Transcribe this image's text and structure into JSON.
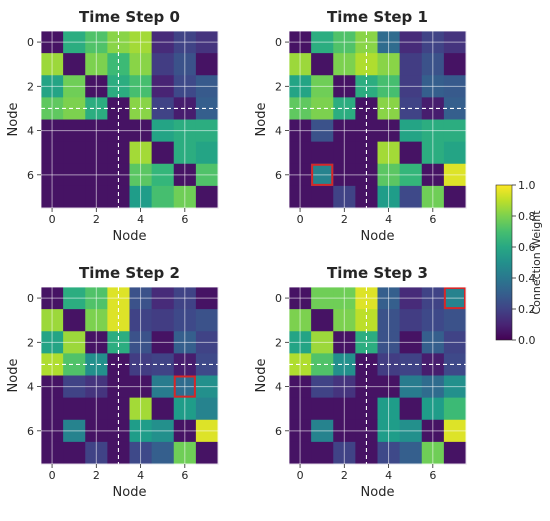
{
  "chart_data": {
    "type": "heatmap",
    "xlabel": "Node",
    "ylabel": "Node",
    "x_ticks": [
      "0",
      "2",
      "4",
      "6"
    ],
    "y_ticks": [
      "0",
      "2",
      "4",
      "6"
    ],
    "colorbar": {
      "label": "Connection Weight",
      "range": [
        0.0,
        1.0
      ],
      "ticks": [
        "0.0",
        "0.2",
        "0.4",
        "0.6",
        "0.8",
        "1.0"
      ],
      "colormap": "viridis"
    },
    "grid": true,
    "divider_index": 4,
    "panels": [
      {
        "title": "Time Step 0",
        "highlight": null,
        "matrix": [
          [
            0.05,
            0.62,
            0.72,
            0.82,
            0.86,
            0.12,
            0.2,
            0.15
          ],
          [
            0.85,
            0.05,
            0.8,
            0.68,
            0.82,
            0.18,
            0.25,
            0.05
          ],
          [
            0.58,
            0.78,
            0.05,
            0.62,
            0.7,
            0.1,
            0.22,
            0.28
          ],
          [
            0.75,
            0.8,
            0.62,
            0.05,
            0.82,
            0.2,
            0.08,
            0.3
          ],
          [
            0.05,
            0.05,
            0.05,
            0.05,
            0.05,
            0.58,
            0.62,
            0.62
          ],
          [
            0.05,
            0.05,
            0.05,
            0.05,
            0.86,
            0.05,
            0.62,
            0.58
          ],
          [
            0.05,
            0.05,
            0.05,
            0.05,
            0.74,
            0.66,
            0.05,
            0.72
          ],
          [
            0.05,
            0.05,
            0.05,
            0.05,
            0.55,
            0.7,
            0.78,
            0.05
          ]
        ]
      },
      {
        "title": "Time Step 1",
        "highlight": [
          6,
          1
        ],
        "matrix": [
          [
            0.05,
            0.62,
            0.72,
            0.82,
            0.35,
            0.12,
            0.2,
            0.15
          ],
          [
            0.85,
            0.05,
            0.8,
            0.88,
            0.82,
            0.18,
            0.25,
            0.05
          ],
          [
            0.58,
            0.78,
            0.05,
            0.62,
            0.7,
            0.18,
            0.3,
            0.28
          ],
          [
            0.75,
            0.8,
            0.62,
            0.05,
            0.82,
            0.2,
            0.08,
            0.3
          ],
          [
            0.05,
            0.25,
            0.05,
            0.05,
            0.05,
            0.58,
            0.62,
            0.62
          ],
          [
            0.05,
            0.05,
            0.05,
            0.05,
            0.86,
            0.05,
            0.62,
            0.58
          ],
          [
            0.05,
            0.45,
            0.05,
            0.05,
            0.74,
            0.66,
            0.05,
            0.95
          ],
          [
            0.05,
            0.05,
            0.2,
            0.05,
            0.55,
            0.22,
            0.78,
            0.05
          ]
        ]
      },
      {
        "title": "Time Step 2",
        "highlight": [
          4,
          6
        ],
        "matrix": [
          [
            0.05,
            0.62,
            0.72,
            0.95,
            0.25,
            0.12,
            0.2,
            0.05
          ],
          [
            0.85,
            0.05,
            0.8,
            0.95,
            0.2,
            0.18,
            0.22,
            0.25
          ],
          [
            0.58,
            0.85,
            0.05,
            0.62,
            0.25,
            0.05,
            0.3,
            0.2
          ],
          [
            0.88,
            0.72,
            0.5,
            0.05,
            0.18,
            0.2,
            0.08,
            0.22
          ],
          [
            0.05,
            0.2,
            0.15,
            0.05,
            0.05,
            0.42,
            0.35,
            0.5
          ],
          [
            0.05,
            0.05,
            0.05,
            0.05,
            0.86,
            0.05,
            0.55,
            0.45
          ],
          [
            0.05,
            0.45,
            0.05,
            0.05,
            0.55,
            0.5,
            0.05,
            0.95
          ],
          [
            0.05,
            0.05,
            0.2,
            0.05,
            0.22,
            0.3,
            0.78,
            0.05
          ]
        ]
      },
      {
        "title": "Time Step 3",
        "highlight": [
          0,
          7
        ],
        "matrix": [
          [
            0.05,
            0.78,
            0.78,
            0.95,
            0.3,
            0.12,
            0.2,
            0.45
          ],
          [
            0.8,
            0.05,
            0.8,
            0.9,
            0.25,
            0.18,
            0.22,
            0.25
          ],
          [
            0.58,
            0.85,
            0.05,
            0.62,
            0.25,
            0.05,
            0.3,
            0.2
          ],
          [
            0.88,
            0.72,
            0.5,
            0.05,
            0.18,
            0.2,
            0.08,
            0.22
          ],
          [
            0.05,
            0.2,
            0.15,
            0.05,
            0.05,
            0.42,
            0.35,
            0.5
          ],
          [
            0.05,
            0.05,
            0.05,
            0.05,
            0.55,
            0.05,
            0.55,
            0.68
          ],
          [
            0.05,
            0.45,
            0.05,
            0.05,
            0.55,
            0.5,
            0.05,
            0.95
          ],
          [
            0.05,
            0.05,
            0.2,
            0.05,
            0.22,
            0.3,
            0.78,
            0.05
          ]
        ]
      }
    ]
  }
}
